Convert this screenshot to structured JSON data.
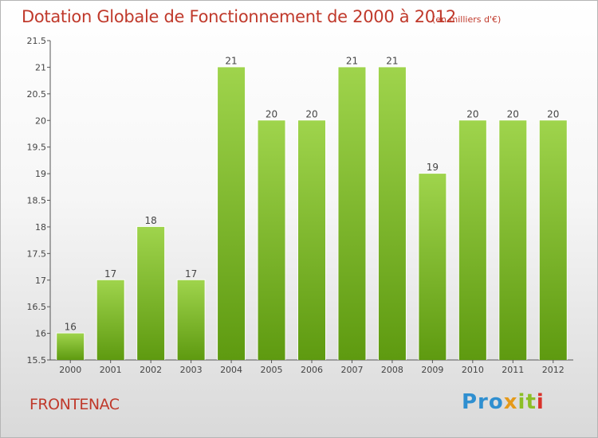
{
  "header": {
    "title": "Dotation Globale de Fonctionnement de 2000 à 2012",
    "subtitle": "(en milliers d'€)"
  },
  "footer": {
    "commune": "FRONTENAC",
    "logo_text": "Proxiti",
    "logo_parts": [
      "Pro",
      "x",
      "it",
      "i"
    ]
  },
  "colors": {
    "title": "#c0392b",
    "bar_top": "#9fd44c",
    "bar_bottom": "#5e9a10",
    "axis": "#555555"
  },
  "chart_data": {
    "type": "bar",
    "title": "Dotation Globale de Fonctionnement de 2000 à 2012",
    "categories": [
      "2000",
      "2001",
      "2002",
      "2003",
      "2004",
      "2005",
      "2006",
      "2007",
      "2008",
      "2009",
      "2010",
      "2011",
      "2012"
    ],
    "values": [
      16,
      17,
      18,
      17,
      21,
      20,
      20,
      21,
      21,
      19,
      20,
      20,
      20
    ],
    "bar_bases": [
      15.5,
      15.5,
      15.5,
      15.5,
      15.5,
      15.5,
      15.5,
      15.5,
      15.5,
      15.5,
      15.5,
      15.5,
      15.5
    ],
    "labels": [
      "16",
      "17",
      "18",
      "17",
      "21",
      "20",
      "20",
      "21",
      "21",
      "19",
      "20",
      "20",
      "20"
    ],
    "ylim": [
      15.5,
      21.5
    ],
    "yticks": [
      15.5,
      16,
      16.5,
      17,
      17.5,
      18,
      18.5,
      19,
      19.5,
      20,
      20.5,
      21,
      21.5
    ],
    "ytick_labels": [
      "15.5",
      "16",
      "16.5",
      "17",
      "17.5",
      "18",
      "18.5",
      "19",
      "19.5",
      "20",
      "20.5",
      "21",
      "21.5"
    ],
    "xlabel": "",
    "ylabel": "",
    "grid": "none"
  }
}
